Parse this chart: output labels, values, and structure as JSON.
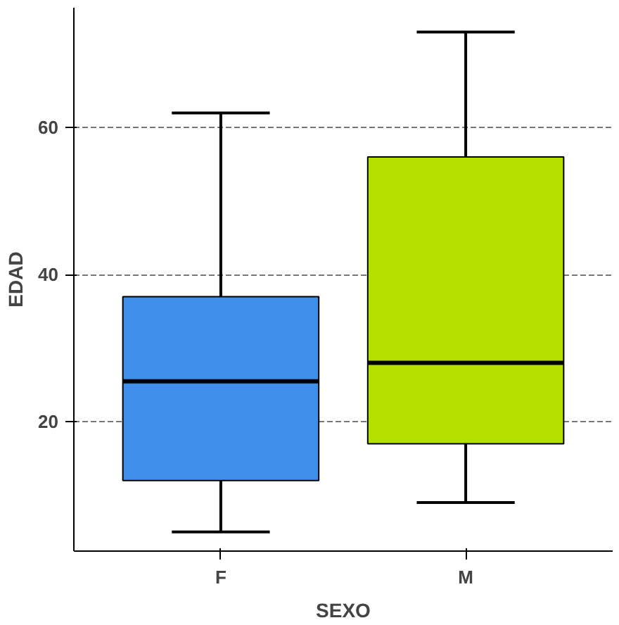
{
  "chart_data": {
    "type": "box",
    "xlabel": "SEXO",
    "ylabel": "EDAD",
    "categories": [
      "F",
      "M"
    ],
    "boxes": [
      {
        "low": 5,
        "q1": 12,
        "median": 25.5,
        "q3": 37,
        "high": 62
      },
      {
        "low": 9,
        "q1": 17,
        "median": 28,
        "q3": 56,
        "high": 73
      }
    ],
    "colors": [
      "#3f8fe8",
      "#b4e000"
    ],
    "ylim": [
      2.4,
      76.3
    ],
    "yticks": [
      20,
      40,
      60
    ],
    "grid": "y"
  }
}
